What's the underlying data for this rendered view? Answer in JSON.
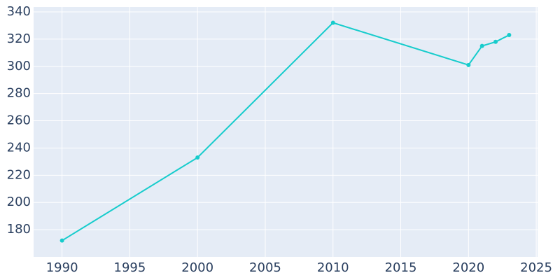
{
  "chart_data": {
    "type": "line",
    "x": [
      1990,
      2000,
      2010,
      2020,
      2021,
      2022,
      2023
    ],
    "series": [
      {
        "values": [
          172,
          233,
          332,
          301,
          315,
          318,
          323
        ],
        "color": "#17cccc"
      }
    ],
    "xlim": [
      1987.9,
      2025.1
    ],
    "xticks": [
      1990,
      1995,
      2000,
      2005,
      2010,
      2015,
      2020,
      2025
    ],
    "ylim": [
      160,
      343.6
    ],
    "yticks": [
      180,
      200,
      220,
      240,
      260,
      280,
      300,
      320,
      340
    ],
    "grid": true
  }
}
